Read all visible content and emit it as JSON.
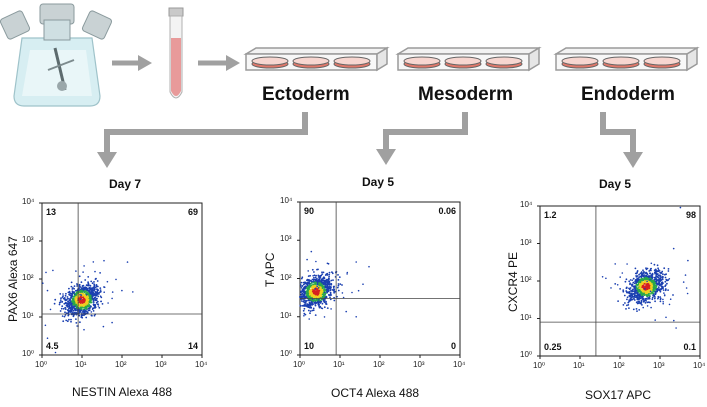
{
  "lineages": [
    {
      "label": "Ectoderm"
    },
    {
      "label": "Mesoderm"
    },
    {
      "label": "Endoderm"
    }
  ],
  "colors": {
    "arrow": "#a0a0a0",
    "dish_medium": "#e0786a",
    "tube_fill": "#e89a9a",
    "density_high": "#d62020",
    "density_mid": "#f0d020",
    "density_low": "#1a3fb0"
  },
  "chart_data": [
    {
      "type": "scatter",
      "title": "Day 7",
      "xlabel": "NESTIN Alexa 488",
      "ylabel": "PAX6 Alexa 647",
      "xscale": "log",
      "yscale": "log",
      "xlim": [
        1,
        10000
      ],
      "ylim": [
        1,
        10000
      ],
      "x_ticks": [
        "10⁰",
        "10¹",
        "10²",
        "10³",
        "10⁴"
      ],
      "y_ticks": [
        "10⁰",
        "10¹",
        "10²",
        "10³",
        "10⁴"
      ],
      "gates": {
        "x": 8,
        "y": 12
      },
      "quadrants": {
        "ul": "13",
        "ur": "69",
        "ll": "4.5",
        "lr": "14"
      },
      "population_center": [
        10,
        28
      ]
    },
    {
      "type": "scatter",
      "title": "Day 5",
      "xlabel": "OCT4 Alexa 488",
      "ylabel": "T APC",
      "xscale": "log",
      "yscale": "log",
      "xlim": [
        1,
        10000
      ],
      "ylim": [
        1,
        10000
      ],
      "x_ticks": [
        "10⁰",
        "10¹",
        "10²",
        "10³",
        "10⁴"
      ],
      "y_ticks": [
        "10⁰",
        "10¹",
        "10²",
        "10³",
        "10⁴"
      ],
      "gates": {
        "x": 8,
        "y": 30
      },
      "quadrants": {
        "ul": "90",
        "ur": "0.06",
        "ll": "10",
        "lr": "0"
      },
      "population_center": [
        2.5,
        45
      ]
    },
    {
      "type": "scatter",
      "title": "Day 5",
      "xlabel": "SOX17 APC",
      "ylabel": "CXCR4 PE",
      "xscale": "log",
      "yscale": "log",
      "xlim": [
        1,
        10000
      ],
      "ylim": [
        1,
        10000
      ],
      "x_ticks": [
        "10⁰",
        "10¹",
        "10²",
        "10³",
        "10⁴"
      ],
      "y_ticks": [
        "10⁰",
        "10¹",
        "10²",
        "10³",
        "10⁴"
      ],
      "gates": {
        "x": 25,
        "y": 8
      },
      "quadrants": {
        "ul": "1.2",
        "ur": "98",
        "ll": "0.25",
        "lr": "0.1"
      },
      "population_center": [
        450,
        70
      ]
    }
  ]
}
